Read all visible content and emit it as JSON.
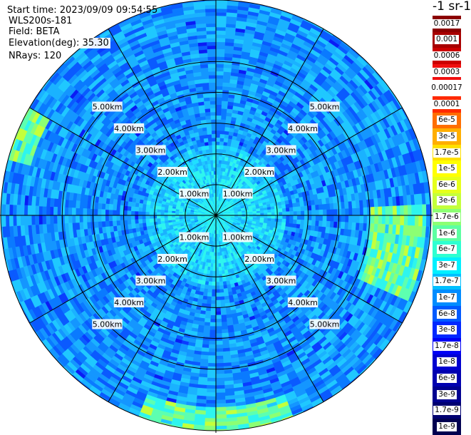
{
  "header": {
    "start_time": "Start time: 2023/09/09 09:54:55",
    "device": "WLS200s-181",
    "field": "Field: BETA",
    "elevation": "Elevation(deg): 35.30",
    "nrays": "NRays: 120"
  },
  "colorbar": {
    "title": "-1 sr-1",
    "labels": [
      "0.0017",
      "0.001",
      "0.0006",
      "0.0003",
      "0.00017",
      "0.0001",
      "6e-5",
      "3e-5",
      "1.7e-5",
      "1e-5",
      "6e-6",
      "3e-6",
      "1.7e-6",
      "1e-6",
      "6e-7",
      "3e-7",
      "1.7e-7",
      "1e-7",
      "6e-8",
      "3e-8",
      "1.7e-8",
      "1e-8",
      "6e-9",
      "3e-9",
      "1.7e-9",
      "1e-9"
    ],
    "colors": [
      "#8b0000",
      "#a80000",
      "#cc0000",
      "#f01010",
      "#ffffff",
      "#ff2a00",
      "#ff6e00",
      "#ffae00",
      "#ffe000",
      "#ffff00",
      "#e6ff1a",
      "#c4ff3b",
      "#8cff73",
      "#5dffa2",
      "#2effd1",
      "#00f0ff",
      "#00bfff",
      "#008cff",
      "#005aff",
      "#0028ff",
      "#0000f5",
      "#0000d0",
      "#0000b0",
      "#000090",
      "#000070",
      "#000050"
    ]
  },
  "chart_data": {
    "type": "heatmap",
    "projection": "polar-ppi",
    "field": "BETA",
    "nrays": 120,
    "range_rings_km": [
      1,
      2,
      3,
      4,
      5
    ],
    "ring_labels": [
      "1.00km",
      "2.00km",
      "3.00km",
      "4.00km",
      "5.00km"
    ],
    "max_range_km": 7,
    "azimuth_lines_deg": [
      0,
      30,
      60,
      90,
      120,
      150,
      180,
      210,
      240,
      270,
      300,
      330
    ],
    "dominant_value_range": [
      "1e-7",
      "6e-7"
    ],
    "enhanced_regions": [
      {
        "azimuth_deg": [
          88,
          115
        ],
        "range_km": [
          5.1,
          6.8
        ],
        "value": "1.7e-6"
      },
      {
        "azimuth_deg": [
          160,
          200
        ],
        "range_km": [
          6.2,
          7.0
        ],
        "value": "1.7e-6"
      },
      {
        "azimuth_deg": [
          285,
          300
        ],
        "range_km": [
          6.3,
          7.0
        ],
        "value": "3e-6"
      }
    ]
  }
}
